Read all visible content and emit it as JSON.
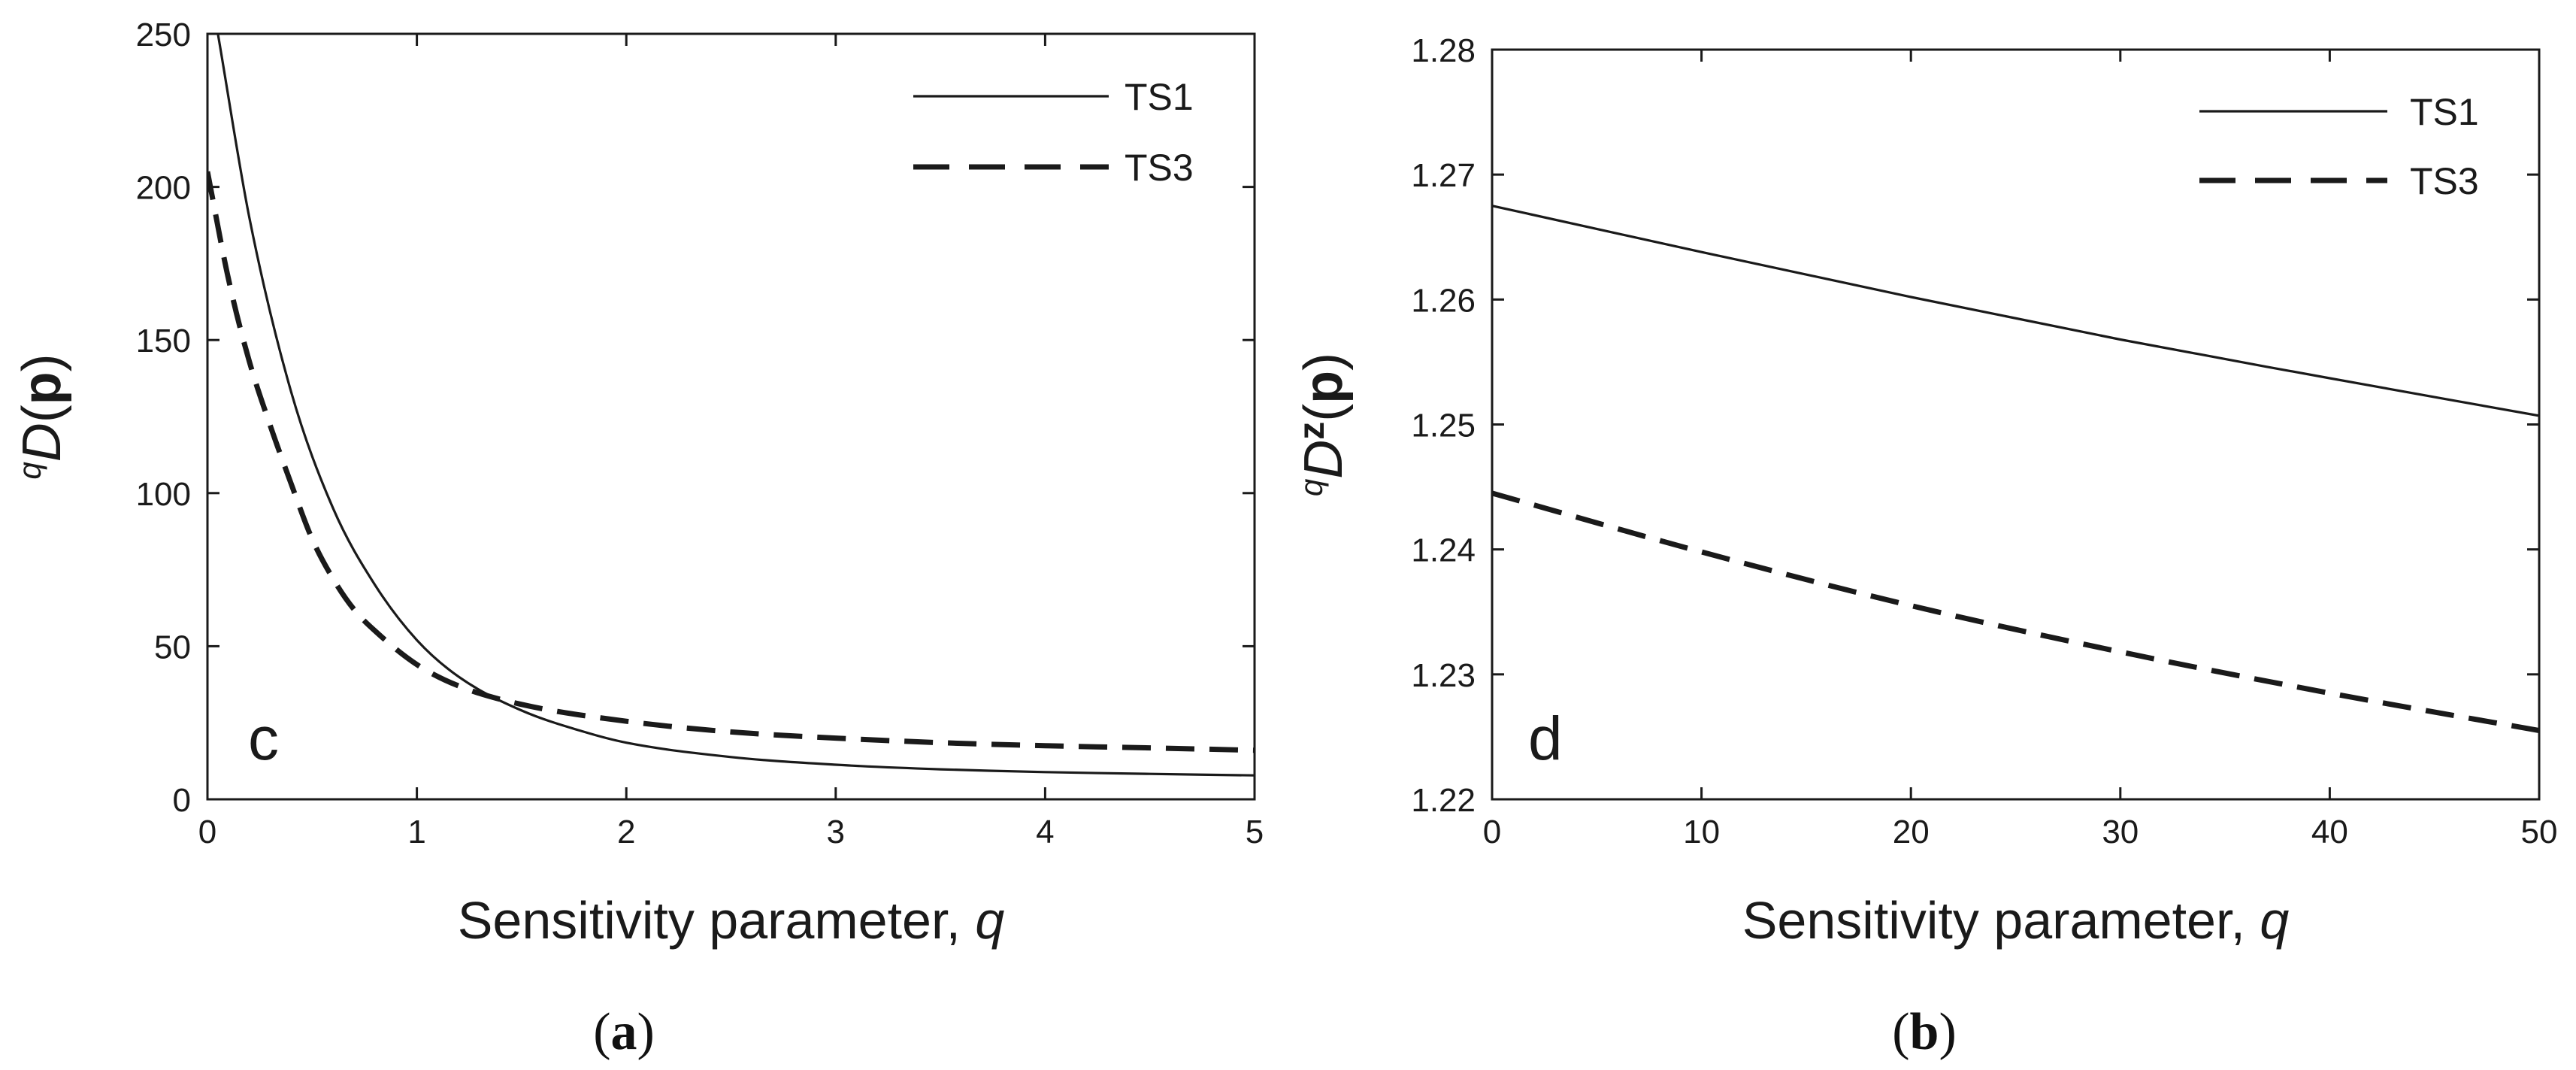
{
  "chart_data": [
    {
      "type": "line",
      "panel_tag": "c",
      "caption": {
        "open": "(",
        "letter": "a",
        "close": ")"
      },
      "xlabel": "Sensitivity parameter, q",
      "ylabel": {
        "sup": "q",
        "main": "D",
        "open": "(",
        "bold": "p",
        "close": ")"
      },
      "xlim": [
        0,
        5
      ],
      "ylim": [
        0,
        250
      ],
      "xticks": [
        0,
        1,
        2,
        3,
        4,
        5
      ],
      "yticks": [
        0,
        50,
        100,
        150,
        200,
        250
      ],
      "grid": false,
      "legend_position": "top-right",
      "series": [
        {
          "name": "TS1",
          "style": "solid",
          "color": "#1a1a1a",
          "x": [
            0.05,
            0.2,
            0.4,
            0.6,
            0.8,
            1.0,
            1.2,
            1.5,
            1.8,
            2.0,
            2.5,
            3.0,
            3.5,
            4.0,
            4.5,
            5.0
          ],
          "y": [
            250,
            190,
            133,
            95,
            70,
            52,
            40,
            29,
            22,
            18.5,
            13.8,
            11.3,
            9.8,
            8.9,
            8.3,
            7.8
          ]
        },
        {
          "name": "TS3",
          "style": "dashed",
          "color": "#1a1a1a",
          "x": [
            0.0,
            0.1,
            0.2,
            0.3,
            0.4,
            0.5,
            0.6,
            0.7,
            0.8,
            1.0,
            1.2,
            1.5,
            2.0,
            2.5,
            3.0,
            3.5,
            4.0,
            4.5,
            5.0
          ],
          "y": [
            205,
            170,
            143,
            122,
            103,
            85,
            72,
            62,
            55,
            44,
            37,
            31,
            25.5,
            22,
            20,
            18.5,
            17.5,
            16.8,
            16
          ]
        }
      ]
    },
    {
      "type": "line",
      "panel_tag": "d",
      "caption": {
        "open": "(",
        "letter": "b",
        "close": ")"
      },
      "xlabel": "Sensitivity parameter, q",
      "ylabel": {
        "sup": "q",
        "main": "D",
        "supz": "z",
        "open": "(",
        "bold": "p",
        "close": ")"
      },
      "xlim": [
        0,
        50
      ],
      "ylim": [
        1.22,
        1.28
      ],
      "xticks": [
        0,
        10,
        20,
        30,
        40,
        50
      ],
      "yticks": [
        1.22,
        1.23,
        1.24,
        1.25,
        1.26,
        1.27,
        1.28
      ],
      "grid": false,
      "legend_position": "top-right",
      "series": [
        {
          "name": "TS1",
          "style": "solid",
          "color": "#1a1a1a",
          "x": [
            0,
            10,
            20,
            30,
            40,
            50
          ],
          "y": [
            1.2675,
            1.2638,
            1.2602,
            1.2568,
            1.2537,
            1.2507
          ]
        },
        {
          "name": "TS3",
          "style": "dashed",
          "color": "#1a1a1a",
          "x": [
            0,
            10,
            20,
            30,
            40,
            50
          ],
          "y": [
            1.2445,
            1.2398,
            1.2355,
            1.2318,
            1.2285,
            1.2255
          ]
        }
      ]
    }
  ]
}
